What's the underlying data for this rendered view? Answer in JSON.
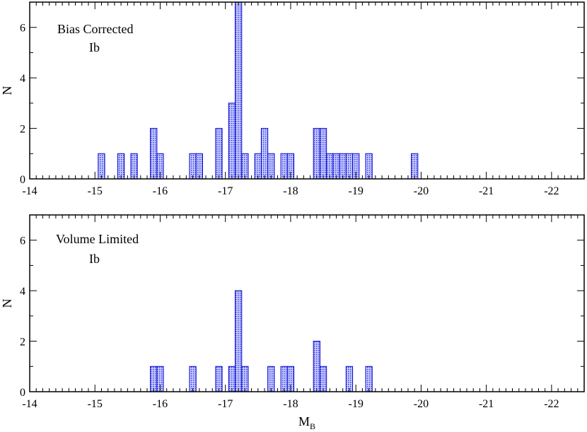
{
  "colors": {
    "bar_fill": "#9aa0ff",
    "bar_stroke": "#0000cc",
    "axis": "#000000"
  },
  "chart_data": [
    {
      "type": "bar",
      "panel": "top",
      "annotations": [
        "Bias Corrected",
        "Ib"
      ],
      "xlabel": "",
      "ylabel": "N",
      "xlim": [
        -14,
        -22.5
      ],
      "ylim": [
        0,
        7
      ],
      "x_reversed": true,
      "bin_width": 0.1,
      "xticks": [
        -14,
        -15,
        -16,
        -17,
        -18,
        -19,
        -20,
        -21,
        -22
      ],
      "xtick_labels": [
        "-14",
        "-15",
        "-16",
        "-17",
        "-18",
        "-19",
        "-20",
        "-21",
        "-22"
      ],
      "yticks": [
        0,
        2,
        4,
        6
      ],
      "ytick_labels": [
        "0",
        "2",
        "4",
        "6"
      ],
      "x": [
        -15.1,
        -15.4,
        -15.6,
        -15.9,
        -16.0,
        -16.5,
        -16.6,
        -16.9,
        -17.1,
        -17.2,
        -17.3,
        -17.5,
        -17.6,
        -17.7,
        -17.9,
        -18.0,
        -18.4,
        -18.5,
        -18.6,
        -18.7,
        -18.8,
        -18.9,
        -19.0,
        -19.2,
        -19.9
      ],
      "values": [
        1,
        1,
        1,
        2,
        1,
        1,
        1,
        2,
        3,
        7,
        1,
        1,
        2,
        1,
        1,
        1,
        2,
        2,
        1,
        1,
        1,
        1,
        1,
        1,
        1
      ]
    },
    {
      "type": "bar",
      "panel": "bottom",
      "annotations": [
        "Volume Limited",
        "Ib"
      ],
      "xlabel": "M",
      "xlabel_sub": "B",
      "ylabel": "N",
      "xlim": [
        -14,
        -22.5
      ],
      "ylim": [
        0,
        7
      ],
      "x_reversed": true,
      "bin_width": 0.1,
      "xticks": [
        -14,
        -15,
        -16,
        -17,
        -18,
        -19,
        -20,
        -21,
        -22
      ],
      "xtick_labels": [
        "-14",
        "-15",
        "-16",
        "-17",
        "-18",
        "-19",
        "-20",
        "-21",
        "-22"
      ],
      "yticks": [
        0,
        2,
        4,
        6
      ],
      "ytick_labels": [
        "0",
        "2",
        "4",
        "6"
      ],
      "x": [
        -15.9,
        -16.0,
        -16.5,
        -16.9,
        -17.1,
        -17.2,
        -17.3,
        -17.7,
        -17.9,
        -18.0,
        -18.4,
        -18.5,
        -18.9,
        -19.2
      ],
      "values": [
        1,
        1,
        1,
        1,
        1,
        4,
        1,
        1,
        1,
        1,
        2,
        1,
        1,
        1
      ]
    }
  ]
}
